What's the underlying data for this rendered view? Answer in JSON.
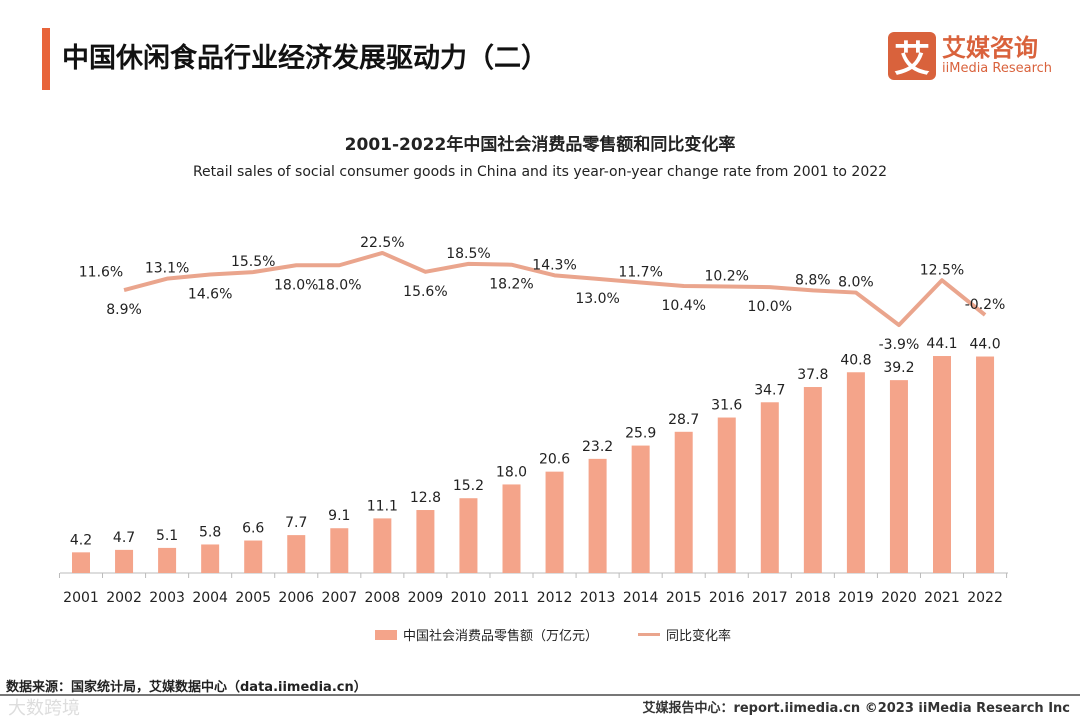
{
  "header": {
    "title": "中国休闲食品行业经济发展驱动力（二）",
    "logo_icon": "艾",
    "logo_cn": "艾媒咨询",
    "logo_en": "iiMedia Research"
  },
  "chart_data": {
    "type": "bar+line",
    "title": "2001-2022年中国社会消费品零售额和同比变化率",
    "subtitle": "Retail sales of social consumer goods in China and its year-on-year change rate from 2001 to 2022",
    "categories": [
      "2001",
      "2002",
      "2003",
      "2004",
      "2005",
      "2006",
      "2007",
      "2008",
      "2009",
      "2010",
      "2011",
      "2012",
      "2013",
      "2014",
      "2015",
      "2016",
      "2017",
      "2018",
      "2019",
      "2020",
      "2021",
      "2022"
    ],
    "series": [
      {
        "name": "中国社会消费品零售额（万亿元）",
        "type": "bar",
        "color": "#f4a48a",
        "values": [
          4.2,
          4.7,
          5.1,
          5.8,
          6.6,
          7.7,
          9.1,
          11.1,
          12.8,
          15.2,
          18.0,
          20.6,
          23.2,
          25.9,
          28.7,
          31.6,
          34.7,
          37.8,
          40.8,
          39.2,
          44.1,
          44.0
        ]
      },
      {
        "name": "同比变化率",
        "type": "line",
        "color": "#eaa58d",
        "unit": "%",
        "values": [
          11.6,
          8.9,
          13.1,
          14.6,
          15.5,
          18.0,
          18.0,
          22.5,
          15.6,
          18.5,
          18.2,
          14.3,
          13.0,
          11.7,
          10.4,
          10.2,
          10.0,
          8.8,
          8.0,
          -3.9,
          12.5,
          -0.2
        ]
      }
    ],
    "legend_position": "bottom"
  },
  "footer": {
    "source": "数据来源：国家统计局，艾媒数据中心（data.iimedia.cn）",
    "report": "艾媒报告中心：report.iimedia.cn ©2023 iiMedia Research Inc",
    "watermark": "大数跨境"
  }
}
